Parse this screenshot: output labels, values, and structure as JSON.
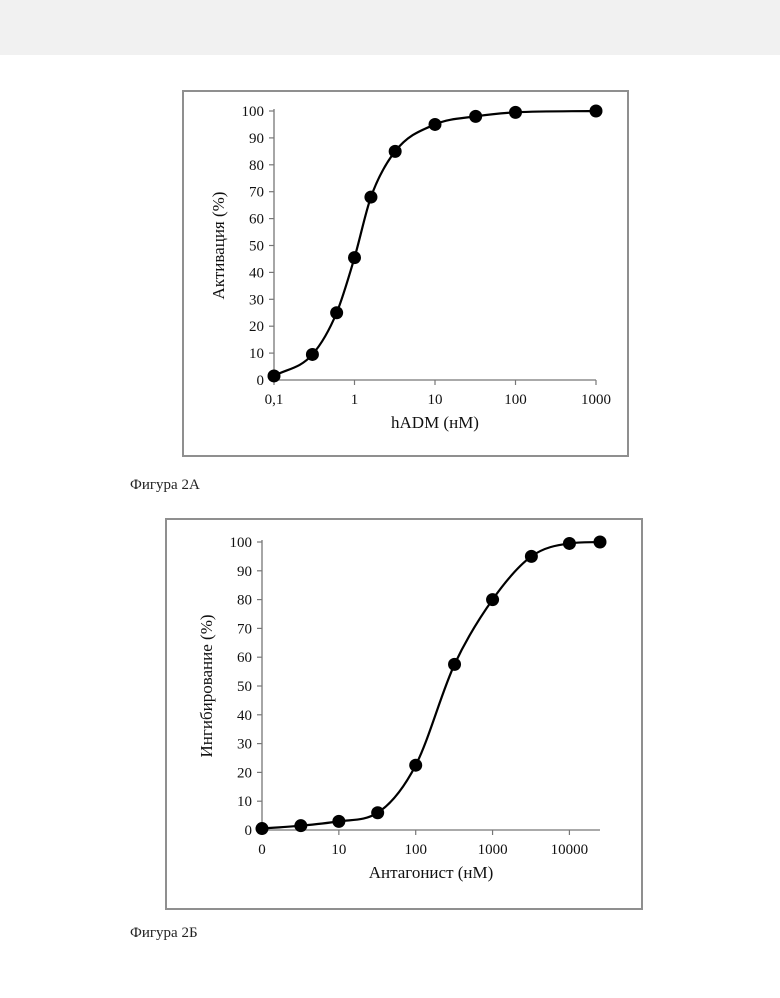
{
  "page": {
    "caption_a": "Фигура 2A",
    "caption_b": "Фигура 2Б"
  },
  "chart_data": [
    {
      "id": "A",
      "type": "line",
      "scale_x": "log",
      "xlabel": "hADM (нМ)",
      "ylabel": "Активация (%)",
      "xlim": [
        0.1,
        1000
      ],
      "ylim": [
        0,
        100
      ],
      "x_ticks": [
        0.1,
        1,
        10,
        100,
        1000
      ],
      "x_tick_labels": [
        "0,1",
        "1",
        "10",
        "100",
        "1000"
      ],
      "y_ticks": [
        0,
        10,
        20,
        30,
        40,
        50,
        60,
        70,
        80,
        90,
        100
      ],
      "y_tick_labels": [
        "0",
        "10",
        "20",
        "30",
        "40",
        "50",
        "60",
        "70",
        "80",
        "90",
        "100"
      ],
      "grid": false,
      "series": [
        {
          "x": [
            0.1,
            0.3,
            0.6,
            1,
            1.6,
            3.2,
            10,
            32,
            100,
            1000
          ],
          "values": [
            1.5,
            9.5,
            25,
            45.5,
            68,
            85,
            95,
            98,
            99.5,
            100
          ]
        }
      ]
    },
    {
      "id": "B",
      "type": "line",
      "scale_x": "log",
      "xlabel": "Антагонист (нМ)",
      "ylabel": "Ингибирование (%)",
      "xlim": [
        1,
        25000
      ],
      "ylim": [
        0,
        100
      ],
      "x_ticks": [
        1,
        10,
        100,
        1000,
        10000
      ],
      "x_tick_labels": [
        "0",
        "10",
        "100",
        "1000",
        "10000"
      ],
      "y_ticks": [
        0,
        10,
        20,
        30,
        40,
        50,
        60,
        70,
        80,
        90,
        100
      ],
      "y_tick_labels": [
        "0",
        "10",
        "20",
        "30",
        "40",
        "50",
        "60",
        "70",
        "80",
        "90",
        "100"
      ],
      "grid": false,
      "series": [
        {
          "x": [
            1,
            3.2,
            10,
            32,
            100,
            320,
            1000,
            3200,
            10000,
            25000
          ],
          "values": [
            0.5,
            1.5,
            3,
            6,
            22.5,
            57.5,
            80,
            95,
            99.5,
            100
          ]
        }
      ]
    }
  ]
}
